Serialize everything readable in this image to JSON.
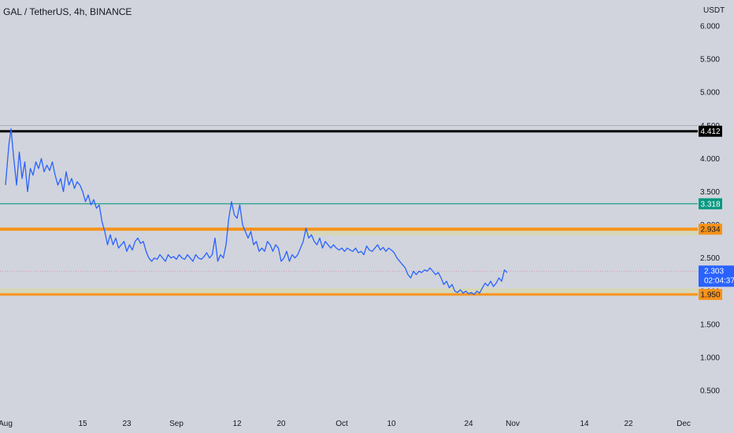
{
  "chart_data": {
    "type": "line",
    "title": "GAL / TetherUS, 4h, BINANCE",
    "ylabel": "USDT",
    "ylim": [
      0.1,
      6.2
    ],
    "y_ticks": [
      "6.000",
      "5.500",
      "5.000",
      "4.500",
      "4.000",
      "3.500",
      "3.000",
      "2.500",
      "2.000",
      "1.500",
      "1.000",
      "0.500"
    ],
    "x_ticks": [
      "Aug",
      "15",
      "23",
      "Sep",
      "12",
      "20",
      "Oct",
      "10",
      "24",
      "Nov",
      "14",
      "22",
      "Dec"
    ],
    "x_tick_days": [
      1,
      15,
      23,
      32,
      43,
      51,
      62,
      71,
      85,
      93,
      106,
      114,
      124
    ],
    "series": [
      {
        "values": [
          [
            0.0,
            3.6
          ],
          [
            0.6,
            4.2
          ],
          [
            1.0,
            4.45
          ],
          [
            1.5,
            4.0
          ],
          [
            2.0,
            3.6
          ],
          [
            2.5,
            4.1
          ],
          [
            3.0,
            3.7
          ],
          [
            3.5,
            3.95
          ],
          [
            4.0,
            3.5
          ],
          [
            4.5,
            3.85
          ],
          [
            5.0,
            3.75
          ],
          [
            5.5,
            3.95
          ],
          [
            6.0,
            3.85
          ],
          [
            6.5,
            4.0
          ],
          [
            7.0,
            3.8
          ],
          [
            7.5,
            3.9
          ],
          [
            8.0,
            3.82
          ],
          [
            8.5,
            3.95
          ],
          [
            9.0,
            3.75
          ],
          [
            9.5,
            3.6
          ],
          [
            10.0,
            3.7
          ],
          [
            10.5,
            3.5
          ],
          [
            11.0,
            3.8
          ],
          [
            11.5,
            3.6
          ],
          [
            12.0,
            3.7
          ],
          [
            12.5,
            3.55
          ],
          [
            13.0,
            3.65
          ],
          [
            13.5,
            3.6
          ],
          [
            14.0,
            3.5
          ],
          [
            14.5,
            3.35
          ],
          [
            15.0,
            3.45
          ],
          [
            15.5,
            3.3
          ],
          [
            16.0,
            3.38
          ],
          [
            16.5,
            3.25
          ],
          [
            17.0,
            3.3
          ],
          [
            17.5,
            3.05
          ],
          [
            18.0,
            2.9
          ],
          [
            18.5,
            2.7
          ],
          [
            19.0,
            2.85
          ],
          [
            19.5,
            2.7
          ],
          [
            20.0,
            2.8
          ],
          [
            20.5,
            2.65
          ],
          [
            21.0,
            2.7
          ],
          [
            21.5,
            2.75
          ],
          [
            22.0,
            2.6
          ],
          [
            22.5,
            2.7
          ],
          [
            23.0,
            2.62
          ],
          [
            23.5,
            2.75
          ],
          [
            24.0,
            2.8
          ],
          [
            24.5,
            2.72
          ],
          [
            25.0,
            2.75
          ],
          [
            25.5,
            2.6
          ],
          [
            26.0,
            2.5
          ],
          [
            26.5,
            2.45
          ],
          [
            27.0,
            2.5
          ],
          [
            27.5,
            2.48
          ],
          [
            28.0,
            2.55
          ],
          [
            28.5,
            2.5
          ],
          [
            29.0,
            2.45
          ],
          [
            29.5,
            2.55
          ],
          [
            30.0,
            2.5
          ],
          [
            30.5,
            2.52
          ],
          [
            31.0,
            2.48
          ],
          [
            31.5,
            2.55
          ],
          [
            32.0,
            2.5
          ],
          [
            32.5,
            2.48
          ],
          [
            33.0,
            2.55
          ],
          [
            33.5,
            2.5
          ],
          [
            34.0,
            2.45
          ],
          [
            34.5,
            2.55
          ],
          [
            35.0,
            2.5
          ],
          [
            35.5,
            2.48
          ],
          [
            36.0,
            2.52
          ],
          [
            36.5,
            2.58
          ],
          [
            37.0,
            2.5
          ],
          [
            37.5,
            2.55
          ],
          [
            38.0,
            2.8
          ],
          [
            38.5,
            2.45
          ],
          [
            39.0,
            2.55
          ],
          [
            39.5,
            2.5
          ],
          [
            40.0,
            2.7
          ],
          [
            40.5,
            3.1
          ],
          [
            41.0,
            3.35
          ],
          [
            41.5,
            3.15
          ],
          [
            42.0,
            3.1
          ],
          [
            42.5,
            3.3
          ],
          [
            43.0,
            3.0
          ],
          [
            43.5,
            2.9
          ],
          [
            44.0,
            2.8
          ],
          [
            44.5,
            2.9
          ],
          [
            45.0,
            2.7
          ],
          [
            45.5,
            2.75
          ],
          [
            46.0,
            2.6
          ],
          [
            46.5,
            2.65
          ],
          [
            47.0,
            2.6
          ],
          [
            47.5,
            2.75
          ],
          [
            48.0,
            2.7
          ],
          [
            48.5,
            2.6
          ],
          [
            49.0,
            2.7
          ],
          [
            49.5,
            2.65
          ],
          [
            50.0,
            2.45
          ],
          [
            50.5,
            2.5
          ],
          [
            51.0,
            2.6
          ],
          [
            51.5,
            2.45
          ],
          [
            52.0,
            2.55
          ],
          [
            52.5,
            2.5
          ],
          [
            53.0,
            2.55
          ],
          [
            53.5,
            2.65
          ],
          [
            54.0,
            2.75
          ],
          [
            54.5,
            2.95
          ],
          [
            55.0,
            2.8
          ],
          [
            55.5,
            2.85
          ],
          [
            56.0,
            2.75
          ],
          [
            56.5,
            2.7
          ],
          [
            57.0,
            2.8
          ],
          [
            57.5,
            2.65
          ],
          [
            58.0,
            2.75
          ],
          [
            58.5,
            2.7
          ],
          [
            59.0,
            2.65
          ],
          [
            59.5,
            2.7
          ],
          [
            60.0,
            2.65
          ],
          [
            60.5,
            2.62
          ],
          [
            61.0,
            2.65
          ],
          [
            61.5,
            2.6
          ],
          [
            62.0,
            2.65
          ],
          [
            62.5,
            2.62
          ],
          [
            63.0,
            2.6
          ],
          [
            63.5,
            2.65
          ],
          [
            64.0,
            2.58
          ],
          [
            64.5,
            2.6
          ],
          [
            65.0,
            2.55
          ],
          [
            65.5,
            2.68
          ],
          [
            66.0,
            2.62
          ],
          [
            66.5,
            2.6
          ],
          [
            67.0,
            2.65
          ],
          [
            67.5,
            2.7
          ],
          [
            68.0,
            2.62
          ],
          [
            68.5,
            2.66
          ],
          [
            69.0,
            2.6
          ],
          [
            69.5,
            2.65
          ],
          [
            70.0,
            2.62
          ],
          [
            70.5,
            2.58
          ],
          [
            71.0,
            2.5
          ],
          [
            71.5,
            2.45
          ],
          [
            72.0,
            2.4
          ],
          [
            72.5,
            2.35
          ],
          [
            73.0,
            2.25
          ],
          [
            73.5,
            2.2
          ],
          [
            74.0,
            2.3
          ],
          [
            74.5,
            2.25
          ],
          [
            75.0,
            2.3
          ],
          [
            75.5,
            2.28
          ],
          [
            76.0,
            2.32
          ],
          [
            76.5,
            2.3
          ],
          [
            77.0,
            2.35
          ],
          [
            77.5,
            2.3
          ],
          [
            78.0,
            2.25
          ],
          [
            78.5,
            2.28
          ],
          [
            79.0,
            2.2
          ],
          [
            79.5,
            2.1
          ],
          [
            80.0,
            2.15
          ],
          [
            80.5,
            2.05
          ],
          [
            81.0,
            2.1
          ],
          [
            81.5,
            2.0
          ],
          [
            82.0,
            1.98
          ],
          [
            82.5,
            2.02
          ],
          [
            83.0,
            1.97
          ],
          [
            83.5,
            2.0
          ],
          [
            84.0,
            1.96
          ],
          [
            84.5,
            1.98
          ],
          [
            85.0,
            1.95
          ],
          [
            85.5,
            2.0
          ],
          [
            86.0,
            1.97
          ],
          [
            86.5,
            2.05
          ],
          [
            87.0,
            2.12
          ],
          [
            87.5,
            2.08
          ],
          [
            88.0,
            2.15
          ],
          [
            88.5,
            2.07
          ],
          [
            89.0,
            2.12
          ],
          [
            89.5,
            2.2
          ],
          [
            90.0,
            2.15
          ],
          [
            90.5,
            2.32
          ],
          [
            91.0,
            2.28
          ]
        ]
      }
    ],
    "h_lines": [
      {
        "value": 4.412,
        "color": "#000000",
        "label": "4.412",
        "label_color": "#ffffff"
      },
      {
        "value": 3.318,
        "color": "#089981",
        "label": "3.318",
        "label_color": "#ffffff"
      },
      {
        "value": 2.934,
        "color": "#f7931a",
        "label": "2.934",
        "label_color": "#131722"
      },
      {
        "value": 1.95,
        "color": "#f7931a",
        "label": "1.950",
        "label_color": "#131722"
      }
    ],
    "last_price": {
      "value": 2.303,
      "label": "2.303",
      "countdown": "02:04:37",
      "color": "#2962ff"
    },
    "colors": {
      "background": "#d1d4dc",
      "line": "#2962ff",
      "zone_fill": "#d7d7b0",
      "text": "#131722"
    }
  }
}
